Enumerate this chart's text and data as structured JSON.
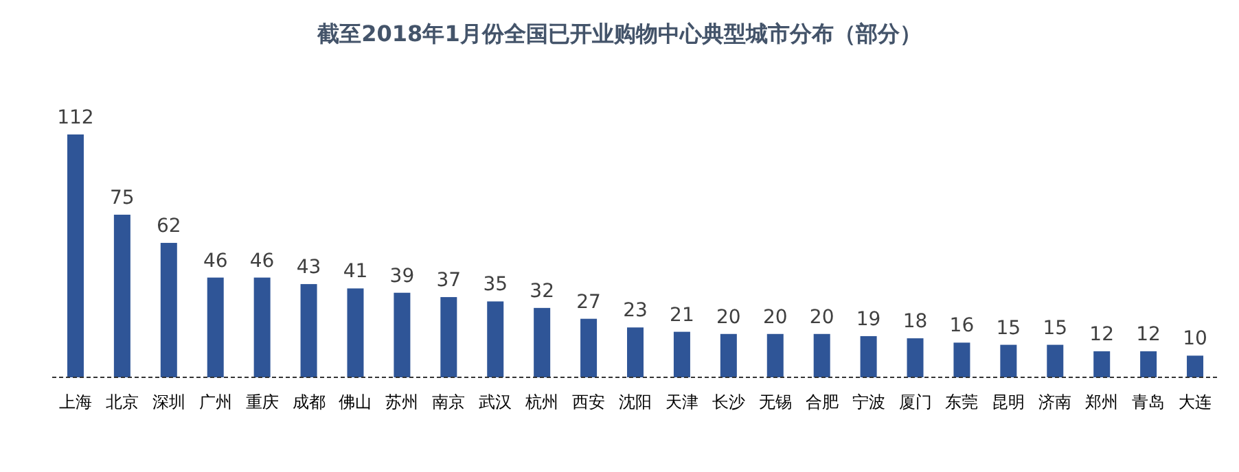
{
  "chart_data": {
    "type": "bar",
    "title": "截至2018年1月份全国已开业购物中心典型城市分布（部分）",
    "categories": [
      "上海",
      "北京",
      "深圳",
      "广州",
      "重庆",
      "成都",
      "佛山",
      "苏州",
      "南京",
      "武汉",
      "杭州",
      "西安",
      "沈阳",
      "天津",
      "长沙",
      "无锡",
      "合肥",
      "宁波",
      "厦门",
      "东莞",
      "昆明",
      "济南",
      "郑州",
      "青岛",
      "大连"
    ],
    "values": [
      112,
      75,
      62,
      46,
      46,
      43,
      41,
      39,
      37,
      35,
      32,
      27,
      23,
      21,
      20,
      20,
      20,
      19,
      18,
      16,
      15,
      15,
      12,
      12,
      10
    ],
    "color": "#2f5597",
    "data_labels": true
  }
}
